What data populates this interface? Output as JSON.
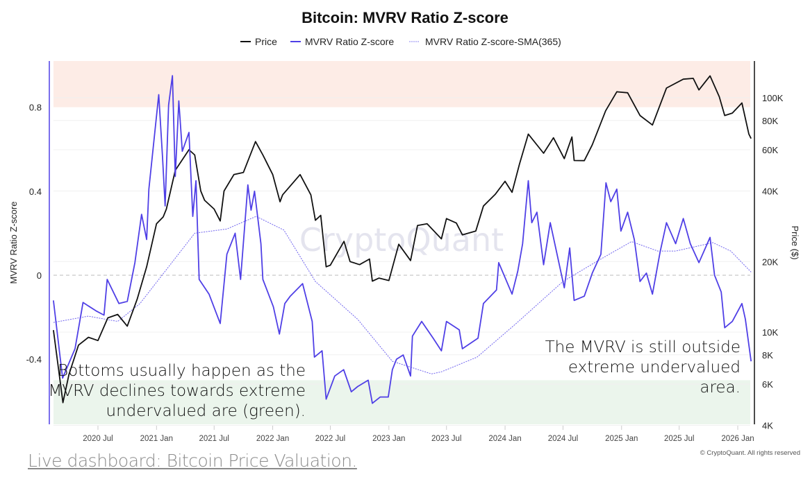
{
  "chart_data": {
    "type": "line",
    "title": "Bitcoin: MVRV Ratio Z-score",
    "legend_position": "top",
    "legend": [
      "Price",
      "MVRV Ratio Z-score",
      "MVRV Ratio Z-score-SMA(365)"
    ],
    "y_left": {
      "label": "MVRV Ratio Z-score",
      "ticks": [
        "0.8",
        "0.4",
        "0",
        "-0.4"
      ],
      "tick_values": [
        0.8,
        0.4,
        0,
        -0.4
      ],
      "range": [
        -0.71,
        1.02
      ]
    },
    "y_right": {
      "label": "Price ($)",
      "scale": "log",
      "ticks": [
        "100K",
        "80K",
        "60K",
        "40K",
        "20K",
        "10K",
        "8K",
        "6K",
        "4K"
      ],
      "tick_values": [
        100000,
        80000,
        60000,
        40000,
        20000,
        10000,
        8000,
        6000,
        4000
      ]
    },
    "x_ticks": [
      "2020 Jul",
      "2021 Jan",
      "2021 Jul",
      "2022 Jan",
      "2022 Jul",
      "2023 Jan",
      "2023 Jul",
      "2024 Jan",
      "2024 Jul",
      "2025 Jan",
      "2025 Jul",
      "2026 Jan"
    ],
    "x_tick_dates": [
      "2020-07-01",
      "2021-01-01",
      "2021-07-01",
      "2022-01-01",
      "2022-07-01",
      "2023-01-01",
      "2023-07-01",
      "2024-01-01",
      "2024-07-01",
      "2025-01-01",
      "2025-07-01",
      "2026-01-01"
    ],
    "x_range": [
      "2020-02-12",
      "2026-02-12"
    ],
    "bands": [
      {
        "name": "overvalued zone",
        "from": 0.8,
        "to": 1.02,
        "color": "#fdece6"
      },
      {
        "name": "undervalued zone",
        "from": -0.71,
        "to": -0.5,
        "color": "#ebf5ec"
      }
    ],
    "reference_line": 0,
    "series": [
      {
        "name": "Price",
        "axis": "right",
        "color": "#111111",
        "x": [
          "2020-02-12",
          "2020-03-13",
          "2020-04-01",
          "2020-05-01",
          "2020-06-01",
          "2020-07-01",
          "2020-08-01",
          "2020-09-01",
          "2020-10-01",
          "2020-11-01",
          "2020-12-01",
          "2021-01-01",
          "2021-01-22",
          "2021-02-01",
          "2021-03-01",
          "2021-04-13",
          "2021-05-01",
          "2021-05-20",
          "2021-06-01",
          "2021-07-01",
          "2021-07-20",
          "2021-08-01",
          "2021-09-01",
          "2021-10-01",
          "2021-11-08",
          "2021-12-01",
          "2022-01-01",
          "2022-01-24",
          "2022-02-01",
          "2022-03-28",
          "2022-05-01",
          "2022-05-15",
          "2022-06-01",
          "2022-06-18",
          "2022-07-01",
          "2022-08-13",
          "2022-09-01",
          "2022-10-01",
          "2022-11-01",
          "2022-11-10",
          "2022-12-01",
          "2023-01-01",
          "2023-02-01",
          "2023-03-10",
          "2023-04-01",
          "2023-05-01",
          "2023-06-15",
          "2023-07-01",
          "2023-08-01",
          "2023-08-20",
          "2023-10-01",
          "2023-10-25",
          "2023-12-01",
          "2024-01-01",
          "2024-01-23",
          "2024-02-15",
          "2024-03-14",
          "2024-05-01",
          "2024-06-01",
          "2024-07-05",
          "2024-07-29",
          "2024-08-05",
          "2024-09-06",
          "2024-10-01",
          "2024-11-12",
          "2024-12-17",
          "2025-01-20",
          "2025-02-28",
          "2025-04-08",
          "2025-05-22",
          "2025-07-14",
          "2025-08-14",
          "2025-09-01",
          "2025-10-06",
          "2025-11-04",
          "2025-11-21",
          "2025-12-15",
          "2026-01-14",
          "2026-02-05",
          "2026-02-12"
        ],
        "values": [
          10200,
          5000,
          6600,
          8800,
          9500,
          9200,
          11500,
          11900,
          10600,
          13800,
          19000,
          29000,
          31000,
          33500,
          49000,
          60000,
          57000,
          40000,
          36500,
          33500,
          29800,
          40000,
          47000,
          48000,
          65000,
          57000,
          47000,
          36000,
          38500,
          47000,
          38500,
          30000,
          31500,
          19000,
          19300,
          24400,
          20000,
          19400,
          20500,
          16500,
          17000,
          16600,
          23700,
          20200,
          28500,
          29000,
          25000,
          30500,
          29200,
          26000,
          27000,
          34500,
          38700,
          44000,
          39500,
          52000,
          70000,
          58000,
          67500,
          55000,
          68000,
          54000,
          53900,
          63000,
          88000,
          106000,
          105000,
          84000,
          76500,
          110000,
          120000,
          121000,
          108000,
          124000,
          101000,
          84000,
          86000,
          95000,
          70000,
          67000
        ]
      },
      {
        "name": "MVRV Ratio Z-score",
        "axis": "left",
        "color": "#4f3fe6",
        "x": [
          "2020-02-12",
          "2020-03-12",
          "2020-04-20",
          "2020-05-15",
          "2020-06-25",
          "2020-07-20",
          "2020-07-30",
          "2020-09-05",
          "2020-10-01",
          "2020-10-25",
          "2020-11-15",
          "2020-12-01",
          "2020-12-08",
          "2021-01-08",
          "2021-01-20",
          "2021-01-28",
          "2021-02-08",
          "2021-02-20",
          "2021-03-01",
          "2021-03-12",
          "2021-03-23",
          "2021-04-13",
          "2021-04-25",
          "2021-05-05",
          "2021-05-15",
          "2021-06-15",
          "2021-07-20",
          "2021-08-10",
          "2021-09-05",
          "2021-09-22",
          "2021-10-15",
          "2021-10-25",
          "2021-11-05",
          "2021-11-25",
          "2021-12-01",
          "2022-01-03",
          "2022-01-22",
          "2022-02-08",
          "2022-02-25",
          "2022-04-05",
          "2022-05-05",
          "2022-05-12",
          "2022-06-05",
          "2022-06-18",
          "2022-07-15",
          "2022-08-12",
          "2022-09-05",
          "2022-09-25",
          "2022-10-28",
          "2022-11-10",
          "2022-12-05",
          "2022-12-30",
          "2023-01-12",
          "2023-01-25",
          "2023-02-15",
          "2023-03-10",
          "2023-03-16",
          "2023-04-14",
          "2023-05-20",
          "2023-06-15",
          "2023-07-01",
          "2023-08-10",
          "2023-08-20",
          "2023-10-08",
          "2023-10-25",
          "2023-12-05",
          "2023-12-12",
          "2024-01-23",
          "2024-02-10",
          "2024-02-25",
          "2024-03-14",
          "2024-03-25",
          "2024-04-10",
          "2024-05-01",
          "2024-05-22",
          "2024-07-05",
          "2024-07-22",
          "2024-08-05",
          "2024-09-06",
          "2024-10-01",
          "2024-10-28",
          "2024-11-13",
          "2024-11-28",
          "2024-12-17",
          "2024-12-30",
          "2025-01-20",
          "2025-02-10",
          "2025-02-28",
          "2025-03-20",
          "2025-04-08",
          "2025-05-02",
          "2025-05-22",
          "2025-06-20",
          "2025-07-14",
          "2025-08-05",
          "2025-09-01",
          "2025-10-06",
          "2025-10-20",
          "2025-11-10",
          "2025-11-21",
          "2025-12-15",
          "2026-01-14",
          "2026-01-25",
          "2026-02-12"
        ],
        "values": [
          -0.12,
          -0.49,
          -0.35,
          -0.13,
          -0.17,
          -0.19,
          -0.02,
          -0.135,
          -0.125,
          0.06,
          0.29,
          0.17,
          0.41,
          0.86,
          0.56,
          0.33,
          0.81,
          0.95,
          0.47,
          0.83,
          0.59,
          0.68,
          0.28,
          0.45,
          -0.02,
          -0.09,
          -0.23,
          0.1,
          0.2,
          -0.02,
          0.43,
          0.31,
          0.4,
          0.15,
          -0.02,
          -0.15,
          -0.28,
          -0.135,
          -0.1,
          -0.04,
          -0.22,
          -0.39,
          -0.36,
          -0.59,
          -0.48,
          -0.45,
          -0.555,
          -0.53,
          -0.5,
          -0.61,
          -0.58,
          -0.58,
          -0.45,
          -0.4,
          -0.38,
          -0.48,
          -0.29,
          -0.22,
          -0.3,
          -0.36,
          -0.22,
          -0.26,
          -0.35,
          -0.3,
          -0.135,
          -0.07,
          0.06,
          -0.09,
          0.02,
          0.15,
          0.45,
          0.25,
          0.3,
          0.05,
          0.25,
          -0.06,
          0.13,
          -0.12,
          -0.1,
          0.01,
          0.1,
          0.44,
          0.35,
          0.41,
          0.21,
          0.3,
          0.17,
          -0.03,
          0.01,
          -0.09,
          0.11,
          0.25,
          0.15,
          0.27,
          0.15,
          0.06,
          0.18,
          0.0,
          -0.08,
          -0.25,
          -0.22,
          -0.135,
          -0.21,
          -0.41
        ]
      },
      {
        "name": "MVRV Ratio Z-score-SMA(365)",
        "axis": "left",
        "color": "#6f63ee",
        "style": "dotted",
        "x": [
          "2020-02-12",
          "2020-06-01",
          "2020-09-01",
          "2020-11-10",
          "2021-02-08",
          "2021-05-01",
          "2021-08-10",
          "2021-11-10",
          "2022-02-05",
          "2022-05-15",
          "2022-09-25",
          "2023-01-12",
          "2023-05-15",
          "2023-06-15",
          "2023-10-05",
          "2024-02-01",
          "2024-07-01",
          "2024-10-20",
          "2025-02-01",
          "2025-04-25",
          "2025-06-20",
          "2025-10-15",
          "2025-12-10",
          "2026-02-12"
        ],
        "values": [
          -0.225,
          -0.195,
          -0.22,
          -0.135,
          0.04,
          0.2,
          0.22,
          0.28,
          0.215,
          -0.03,
          -0.21,
          -0.41,
          -0.47,
          -0.46,
          -0.39,
          -0.235,
          -0.03,
          0.07,
          0.16,
          0.115,
          0.115,
          0.155,
          0.115,
          0.015
        ]
      }
    ],
    "annotations": {
      "left": [
        "Bottoms usually happen as the",
        "MVRV declines towards extreme",
        "undervalued are (green)."
      ],
      "right": [
        "The MVRV is still outside",
        "extreme undervalued",
        "area."
      ]
    },
    "watermark": "CryptoQuant"
  },
  "footer": {
    "link": "Live dashboard: Bitcoin Price Valuation.",
    "copyright": "© CryptoQuant. All rights reserved"
  }
}
